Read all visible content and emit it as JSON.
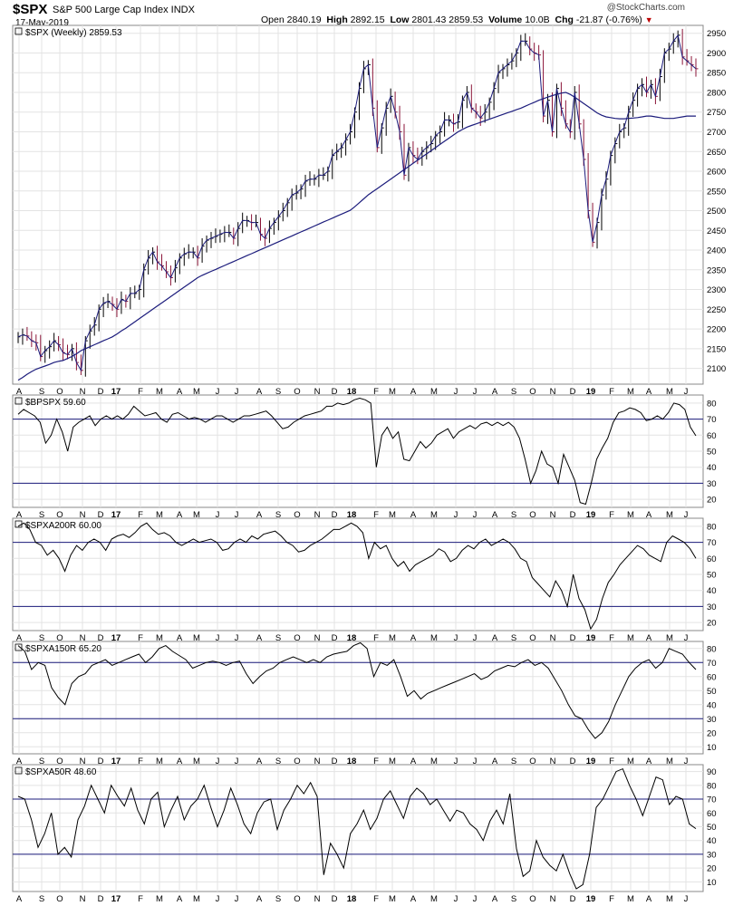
{
  "header": {
    "symbol": "$SPX",
    "name": "S&P 500 Large Cap Index INDX",
    "date": "17-May-2019",
    "open_label": "Open",
    "open": "2840.19",
    "high_label": "High",
    "high": "2892.15",
    "low_label": "Low",
    "low": "2801.43",
    "close": "2859.53",
    "volume_label": "Volume",
    "volume": "10.0B",
    "chg_label": "Chg",
    "chg": "-21.87 (-0.76%)",
    "logo": "@StockCharts.com"
  },
  "colors": {
    "up": "#000000",
    "down": "#8b1538",
    "ma": "#1c1c7c",
    "ref": "#1c1c7c",
    "line": "#000000"
  },
  "chart_data": [
    {
      "type": "line",
      "title": "$SPX (Weekly) 2859.53",
      "ylim": [
        2060,
        2970
      ],
      "yticks": [
        2100,
        2150,
        2200,
        2250,
        2300,
        2350,
        2400,
        2450,
        2500,
        2550,
        2600,
        2650,
        2700,
        2750,
        2800,
        2850,
        2900,
        2950
      ],
      "x_labels": [
        "A",
        "S",
        "O",
        "N",
        "D",
        "17",
        "F",
        "M",
        "A",
        "M",
        "J",
        "J",
        "A",
        "S",
        "O",
        "N",
        "D",
        "18",
        "F",
        "M",
        "A",
        "M",
        "J",
        "J",
        "A",
        "S",
        "O",
        "N",
        "D",
        "19",
        "F",
        "M",
        "A",
        "M",
        "J"
      ],
      "series": [
        {
          "values": [
            2180,
            2185,
            2182,
            2170,
            2165,
            2130,
            2145,
            2155,
            2170,
            2160,
            2140,
            2135,
            2150,
            2115,
            2095,
            2170,
            2195,
            2210,
            2250,
            2265,
            2270,
            2262,
            2250,
            2275,
            2270,
            2290,
            2290,
            2300,
            2350,
            2380,
            2395,
            2370,
            2360,
            2345,
            2330,
            2355,
            2380,
            2390,
            2395,
            2395,
            2380,
            2410,
            2425,
            2430,
            2435,
            2440,
            2445,
            2445,
            2430,
            2455,
            2475,
            2475,
            2470,
            2470,
            2440,
            2430,
            2455,
            2470,
            2485,
            2500,
            2520,
            2540,
            2545,
            2555,
            2575,
            2580,
            2580,
            2590,
            2590,
            2600,
            2640,
            2650,
            2660,
            2680,
            2700,
            2750,
            2810,
            2860,
            2870,
            2760,
            2660,
            2710,
            2760,
            2790,
            2750,
            2700,
            2590,
            2660,
            2640,
            2630,
            2650,
            2660,
            2670,
            2690,
            2700,
            2730,
            2730,
            2720,
            2725,
            2780,
            2800,
            2760,
            2750,
            2735,
            2750,
            2775,
            2810,
            2850,
            2860,
            2870,
            2880,
            2900,
            2930,
            2930,
            2910,
            2900,
            2895,
            2740,
            2780,
            2700,
            2810,
            2760,
            2720,
            2700,
            2800,
            2720,
            2630,
            2500,
            2420,
            2470,
            2540,
            2580,
            2640,
            2670,
            2700,
            2710,
            2750,
            2780,
            2810,
            2820,
            2800,
            2820,
            2790,
            2840,
            2900,
            2910,
            2930,
            2945,
            2890,
            2880,
            2870,
            2860
          ]
        },
        {
          "values": [
            2070,
            2077,
            2085,
            2092,
            2098,
            2102,
            2106,
            2110,
            2115,
            2118,
            2120,
            2125,
            2130,
            2137,
            2145,
            2150,
            2155,
            2160,
            2165,
            2170,
            2175,
            2180,
            2187,
            2195,
            2202,
            2210,
            2218,
            2226,
            2234,
            2242,
            2250,
            2258,
            2266,
            2274,
            2282,
            2290,
            2298,
            2306,
            2314,
            2322,
            2330,
            2336,
            2341,
            2346,
            2351,
            2356,
            2361,
            2366,
            2371,
            2376,
            2381,
            2386,
            2391,
            2396,
            2401,
            2406,
            2411,
            2416,
            2421,
            2426,
            2431,
            2436,
            2441,
            2446,
            2451,
            2456,
            2461,
            2466,
            2471,
            2476,
            2481,
            2486,
            2491,
            2496,
            2501,
            2510,
            2520,
            2530,
            2540,
            2548,
            2556,
            2564,
            2572,
            2580,
            2588,
            2596,
            2604,
            2612,
            2620,
            2628,
            2636,
            2644,
            2652,
            2660,
            2668,
            2676,
            2684,
            2692,
            2700,
            2706,
            2712,
            2716,
            2720,
            2724,
            2728,
            2732,
            2736,
            2740,
            2744,
            2748,
            2752,
            2756,
            2760,
            2765,
            2770,
            2775,
            2780,
            2784,
            2788,
            2792,
            2795,
            2798,
            2800,
            2795,
            2788,
            2780,
            2772,
            2764,
            2756,
            2748,
            2742,
            2738,
            2736,
            2734,
            2733,
            2733,
            2734,
            2735,
            2736,
            2738,
            2740,
            2740,
            2738,
            2736,
            2734,
            2734,
            2734,
            2736,
            2738,
            2740,
            2740,
            2740
          ]
        }
      ]
    },
    {
      "type": "line",
      "title": "$BPSPX 59.60",
      "ylim": [
        15,
        85
      ],
      "yticks": [
        20,
        30,
        40,
        50,
        60,
        70,
        80
      ],
      "reference_lines": [
        30,
        70
      ],
      "values": [
        73,
        76,
        74,
        72,
        68,
        55,
        60,
        70,
        62,
        50,
        65,
        68,
        70,
        72,
        66,
        70,
        72,
        70,
        72,
        70,
        73,
        78,
        75,
        72,
        73,
        74,
        70,
        68,
        73,
        74,
        72,
        70,
        71,
        70,
        68,
        70,
        72,
        72,
        70,
        68,
        70,
        72,
        72,
        73,
        74,
        75,
        72,
        68,
        64,
        65,
        68,
        70,
        72,
        73,
        74,
        75,
        78,
        78,
        80,
        79,
        80,
        82,
        83,
        82,
        80,
        40,
        60,
        65,
        58,
        62,
        45,
        44,
        50,
        56,
        52,
        55,
        60,
        62,
        64,
        58,
        62,
        64,
        66,
        64,
        67,
        68,
        66,
        68,
        66,
        68,
        65,
        58,
        45,
        30,
        38,
        50,
        42,
        40,
        30,
        48,
        40,
        32,
        18,
        17,
        30,
        45,
        52,
        58,
        68,
        74,
        75,
        77,
        76,
        74,
        69,
        70,
        72,
        70,
        74,
        80,
        79,
        76,
        65,
        59.6
      ]
    },
    {
      "type": "line",
      "title": "$SPXA200R 60.00",
      "ylim": [
        15,
        85
      ],
      "yticks": [
        20,
        30,
        40,
        50,
        60,
        70,
        80
      ],
      "reference_lines": [
        30,
        70
      ],
      "values": [
        80,
        82,
        78,
        70,
        68,
        62,
        65,
        60,
        52,
        62,
        68,
        65,
        70,
        72,
        70,
        65,
        72,
        74,
        75,
        73,
        76,
        80,
        82,
        78,
        75,
        76,
        74,
        70,
        68,
        70,
        72,
        70,
        71,
        72,
        70,
        65,
        66,
        70,
        72,
        70,
        74,
        72,
        75,
        76,
        77,
        74,
        70,
        68,
        64,
        65,
        68,
        70,
        72,
        75,
        78,
        78,
        80,
        82,
        80,
        76,
        60,
        70,
        66,
        68,
        60,
        55,
        58,
        52,
        56,
        58,
        60,
        62,
        66,
        64,
        58,
        60,
        65,
        68,
        66,
        70,
        72,
        68,
        70,
        72,
        70,
        66,
        60,
        58,
        48,
        44,
        40,
        36,
        46,
        40,
        30,
        50,
        35,
        28,
        16,
        22,
        35,
        45,
        50,
        56,
        60,
        64,
        68,
        66,
        62,
        60,
        58,
        70,
        74,
        72,
        70,
        66,
        60
      ]
    },
    {
      "type": "line",
      "title": "$SPXA150R 65.20",
      "ylim": [
        5,
        85
      ],
      "yticks": [
        10,
        20,
        30,
        40,
        50,
        60,
        70,
        80
      ],
      "reference_lines": [
        30,
        70
      ],
      "values": [
        82,
        78,
        65,
        70,
        68,
        52,
        45,
        40,
        55,
        60,
        62,
        68,
        70,
        72,
        68,
        70,
        72,
        74,
        76,
        70,
        74,
        80,
        82,
        78,
        75,
        72,
        66,
        68,
        70,
        71,
        70,
        68,
        70,
        71,
        62,
        55,
        60,
        64,
        66,
        70,
        72,
        74,
        72,
        70,
        72,
        70,
        74,
        76,
        77,
        78,
        82,
        84,
        80,
        60,
        70,
        68,
        72,
        60,
        46,
        50,
        44,
        48,
        50,
        52,
        54,
        56,
        58,
        60,
        62,
        58,
        60,
        64,
        66,
        68,
        67,
        70,
        72,
        68,
        70,
        66,
        58,
        50,
        40,
        32,
        30,
        22,
        16,
        20,
        28,
        40,
        50,
        60,
        66,
        70,
        72,
        66,
        70,
        80,
        78,
        76,
        70,
        65
      ]
    },
    {
      "type": "line",
      "title": "$SPXA50R 48.60",
      "ylim": [
        3,
        95
      ],
      "yticks": [
        10,
        20,
        30,
        40,
        50,
        60,
        70,
        80,
        90
      ],
      "reference_lines": [
        30,
        70
      ],
      "values": [
        72,
        70,
        55,
        35,
        45,
        60,
        30,
        35,
        28,
        55,
        65,
        80,
        70,
        60,
        80,
        72,
        65,
        78,
        62,
        52,
        70,
        75,
        50,
        62,
        72,
        55,
        65,
        70,
        80,
        64,
        50,
        62,
        78,
        66,
        52,
        45,
        60,
        68,
        70,
        48,
        62,
        70,
        80,
        74,
        82,
        72,
        15,
        38,
        30,
        20,
        45,
        52,
        62,
        48,
        56,
        70,
        76,
        66,
        56,
        72,
        78,
        74,
        66,
        70,
        62,
        54,
        62,
        60,
        52,
        48,
        40,
        54,
        62,
        52,
        74,
        34,
        14,
        18,
        40,
        28,
        22,
        18,
        30,
        16,
        5,
        8,
        30,
        64,
        70,
        80,
        90,
        92,
        80,
        70,
        58,
        72,
        86,
        84,
        66,
        72,
        70,
        52,
        48.6
      ]
    }
  ]
}
